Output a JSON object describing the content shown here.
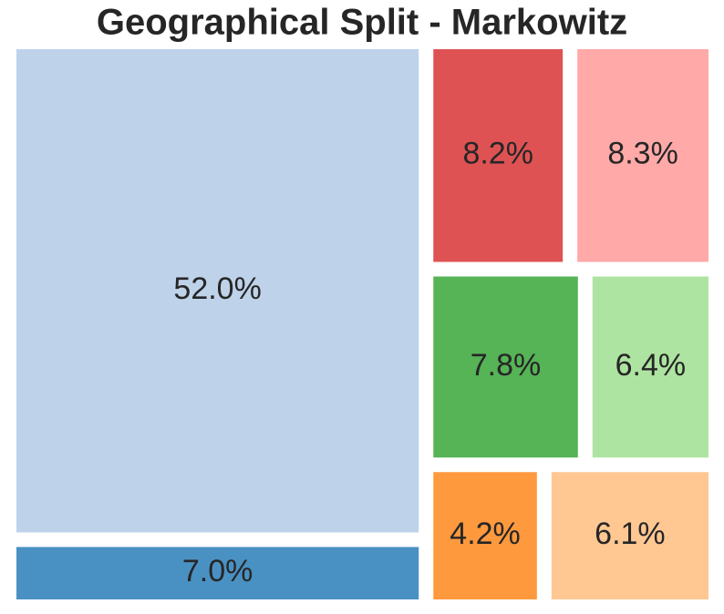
{
  "chart_data": {
    "type": "treemap",
    "title": "Geographical Split - Markowitz",
    "values": [
      52.0,
      7.0,
      8.2,
      8.3,
      7.8,
      6.4,
      4.2,
      6.1
    ],
    "value_labels": [
      "52.0%",
      "7.0%",
      "8.2%",
      "8.3%",
      "7.8%",
      "6.4%",
      "4.2%",
      "6.1%"
    ],
    "colors": [
      "#bed2ea",
      "#4a91c3",
      "#de5254",
      "#ffa9a8",
      "#56b356",
      "#aee4a1",
      "#ff993e",
      "#ffc792"
    ]
  }
}
